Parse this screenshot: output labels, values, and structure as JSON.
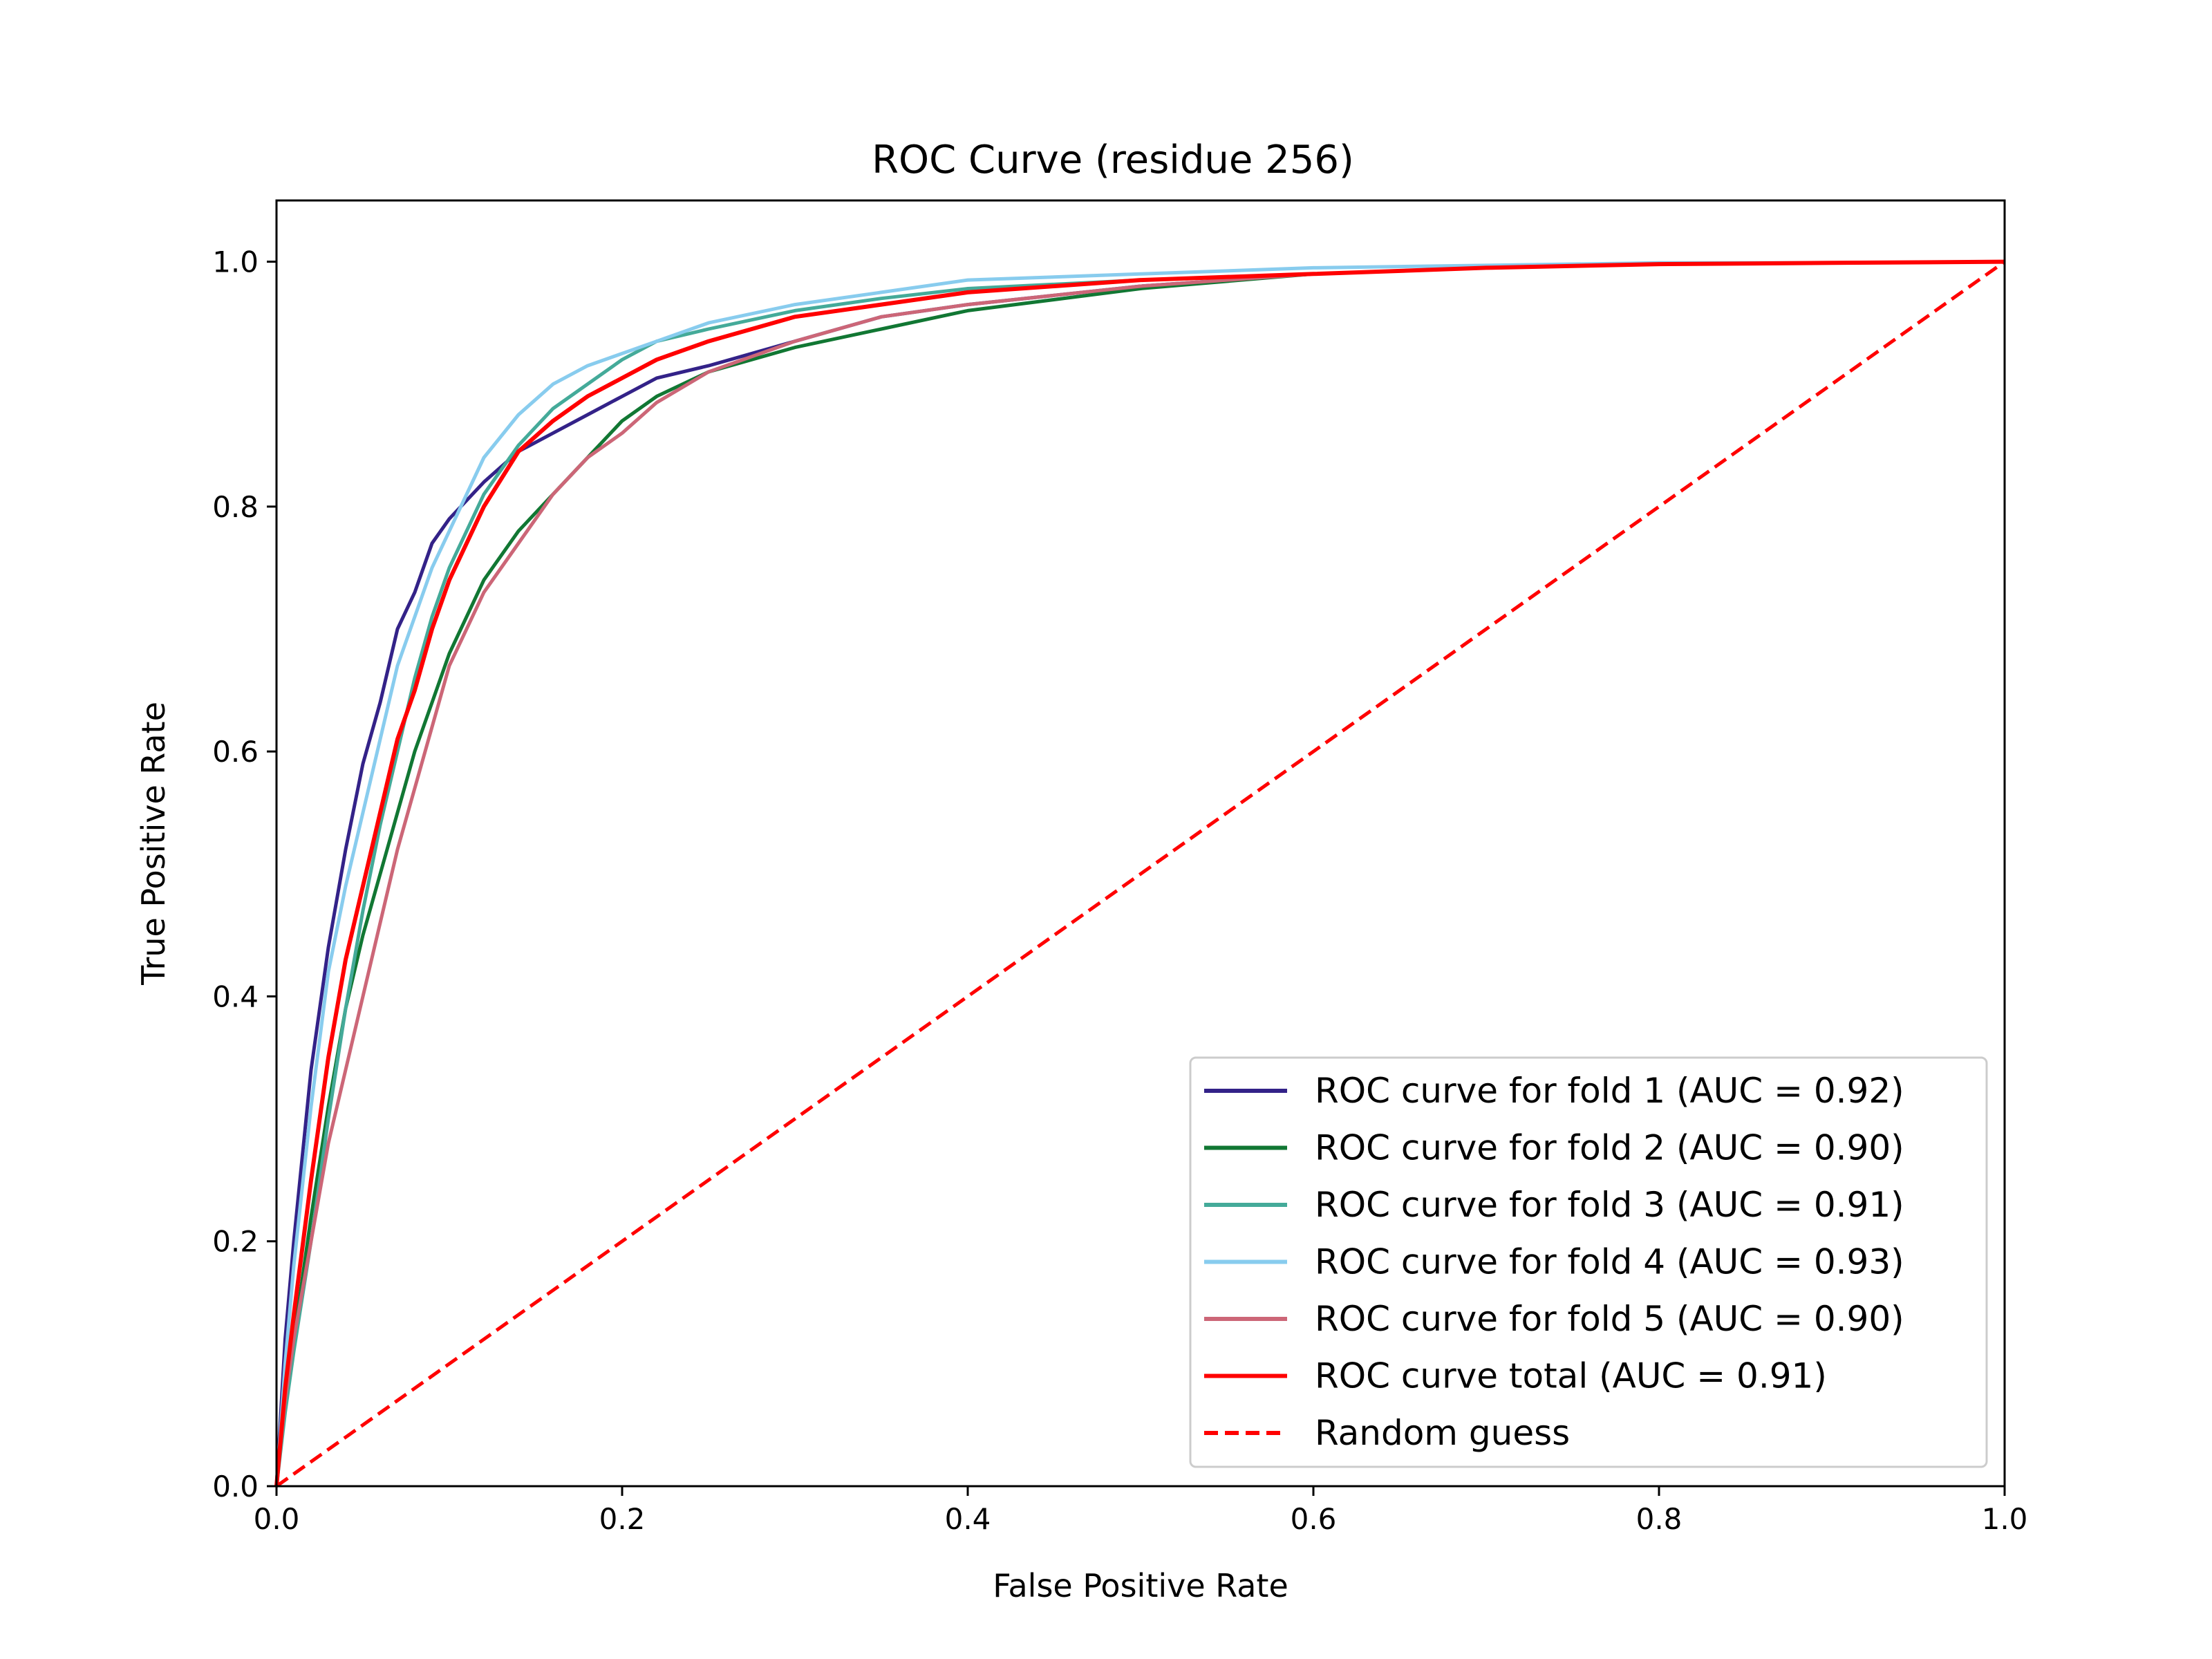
{
  "chart_data": {
    "type": "line",
    "title": "ROC Curve (residue 256)",
    "xlabel": "False Positive Rate",
    "ylabel": "True Positive Rate",
    "xlim": [
      0.0,
      1.0
    ],
    "ylim": [
      0.0,
      1.05
    ],
    "xticks": [
      "0.0",
      "0.2",
      "0.4",
      "0.6",
      "0.8",
      "1.0"
    ],
    "yticks": [
      "0.0",
      "0.2",
      "0.4",
      "0.6",
      "0.8",
      "1.0"
    ],
    "grid": false,
    "legend_position": "bottom-right",
    "series": [
      {
        "name": "ROC curve for fold 1 (AUC = 0.92)",
        "color": "#332288",
        "dash": "solid",
        "x": [
          0,
          0.005,
          0.01,
          0.02,
          0.03,
          0.04,
          0.05,
          0.06,
          0.07,
          0.08,
          0.09,
          0.1,
          0.12,
          0.14,
          0.16,
          0.18,
          0.2,
          0.22,
          0.25,
          0.3,
          0.35,
          0.4,
          0.5,
          0.6,
          0.7,
          0.8,
          0.9,
          1.0
        ],
        "y": [
          0,
          0.12,
          0.2,
          0.34,
          0.44,
          0.52,
          0.59,
          0.64,
          0.7,
          0.73,
          0.77,
          0.79,
          0.82,
          0.845,
          0.86,
          0.875,
          0.89,
          0.905,
          0.915,
          0.935,
          0.955,
          0.965,
          0.98,
          0.99,
          0.995,
          0.998,
          0.999,
          1.0
        ]
      },
      {
        "name": "ROC curve for fold 2 (AUC = 0.90)",
        "color": "#117733",
        "dash": "solid",
        "x": [
          0,
          0.005,
          0.01,
          0.02,
          0.03,
          0.04,
          0.05,
          0.06,
          0.07,
          0.08,
          0.09,
          0.1,
          0.12,
          0.14,
          0.16,
          0.18,
          0.2,
          0.22,
          0.25,
          0.3,
          0.35,
          0.4,
          0.5,
          0.6,
          0.7,
          0.8,
          0.9,
          1.0
        ],
        "y": [
          0,
          0.07,
          0.12,
          0.22,
          0.31,
          0.39,
          0.45,
          0.5,
          0.55,
          0.6,
          0.64,
          0.68,
          0.74,
          0.78,
          0.81,
          0.84,
          0.87,
          0.89,
          0.91,
          0.93,
          0.945,
          0.96,
          0.978,
          0.99,
          0.995,
          0.998,
          0.999,
          1.0
        ]
      },
      {
        "name": "ROC curve for fold 3 (AUC = 0.91)",
        "color": "#44AA99",
        "dash": "solid",
        "x": [
          0,
          0.005,
          0.01,
          0.02,
          0.03,
          0.04,
          0.05,
          0.06,
          0.07,
          0.08,
          0.09,
          0.1,
          0.12,
          0.14,
          0.16,
          0.18,
          0.2,
          0.22,
          0.25,
          0.3,
          0.35,
          0.4,
          0.5,
          0.6,
          0.7,
          0.8,
          0.9,
          1.0
        ],
        "y": [
          0,
          0.06,
          0.11,
          0.2,
          0.3,
          0.39,
          0.47,
          0.54,
          0.6,
          0.66,
          0.71,
          0.75,
          0.81,
          0.85,
          0.88,
          0.9,
          0.92,
          0.935,
          0.945,
          0.96,
          0.97,
          0.978,
          0.985,
          0.99,
          0.995,
          0.998,
          0.999,
          1.0
        ]
      },
      {
        "name": "ROC curve for fold 4 (AUC = 0.93)",
        "color": "#88CCEE",
        "dash": "solid",
        "x": [
          0,
          0.005,
          0.01,
          0.02,
          0.03,
          0.04,
          0.05,
          0.06,
          0.07,
          0.08,
          0.09,
          0.1,
          0.12,
          0.14,
          0.16,
          0.18,
          0.2,
          0.22,
          0.25,
          0.3,
          0.35,
          0.4,
          0.5,
          0.6,
          0.7,
          0.8,
          0.9,
          1.0
        ],
        "y": [
          0,
          0.1,
          0.18,
          0.31,
          0.42,
          0.49,
          0.55,
          0.61,
          0.67,
          0.71,
          0.75,
          0.78,
          0.84,
          0.875,
          0.9,
          0.915,
          0.925,
          0.935,
          0.95,
          0.965,
          0.975,
          0.985,
          0.99,
          0.995,
          0.997,
          0.999,
          0.999,
          1.0
        ]
      },
      {
        "name": "ROC curve for fold 5 (AUC = 0.90)",
        "color": "#CC6677",
        "dash": "solid",
        "x": [
          0,
          0.005,
          0.01,
          0.02,
          0.03,
          0.04,
          0.05,
          0.06,
          0.07,
          0.08,
          0.09,
          0.1,
          0.12,
          0.14,
          0.16,
          0.18,
          0.2,
          0.22,
          0.25,
          0.3,
          0.35,
          0.4,
          0.5,
          0.6,
          0.7,
          0.8,
          0.9,
          1.0
        ],
        "y": [
          0,
          0.07,
          0.12,
          0.2,
          0.28,
          0.34,
          0.4,
          0.46,
          0.52,
          0.57,
          0.62,
          0.67,
          0.73,
          0.77,
          0.81,
          0.84,
          0.86,
          0.885,
          0.91,
          0.935,
          0.955,
          0.965,
          0.98,
          0.99,
          0.995,
          0.998,
          0.999,
          1.0
        ]
      },
      {
        "name": "ROC curve total (AUC = 0.91)",
        "color": "#FF0000",
        "dash": "solid",
        "x": [
          0,
          0.005,
          0.01,
          0.02,
          0.03,
          0.04,
          0.05,
          0.06,
          0.07,
          0.08,
          0.09,
          0.1,
          0.12,
          0.14,
          0.16,
          0.18,
          0.2,
          0.22,
          0.25,
          0.3,
          0.35,
          0.4,
          0.5,
          0.6,
          0.7,
          0.8,
          0.9,
          1.0
        ],
        "y": [
          0,
          0.08,
          0.14,
          0.25,
          0.35,
          0.43,
          0.49,
          0.55,
          0.61,
          0.65,
          0.7,
          0.74,
          0.8,
          0.845,
          0.87,
          0.89,
          0.905,
          0.92,
          0.935,
          0.955,
          0.965,
          0.975,
          0.985,
          0.99,
          0.995,
          0.998,
          0.999,
          1.0
        ]
      },
      {
        "name": "Random guess",
        "color": "#FF0000",
        "dash": "dashed",
        "x": [
          0,
          1
        ],
        "y": [
          0,
          1
        ]
      }
    ]
  }
}
